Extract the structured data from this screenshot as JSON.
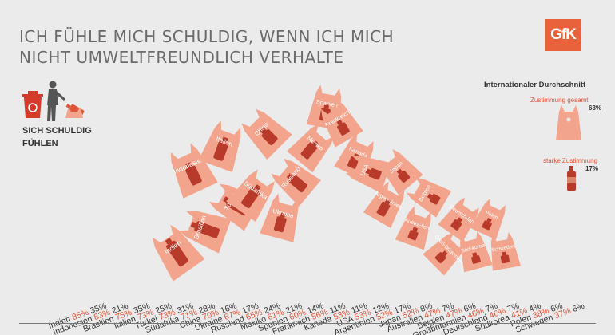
{
  "title": {
    "line1": "ICH FÜHLE MICH SCHULDIG, WENN ICH MICH",
    "line2": "NICHT UMWELTFREUNDLICH VERHALTE"
  },
  "logo": {
    "text": "GfK"
  },
  "icon_label": {
    "line1": "SICH SCHULDIG",
    "line2": "FÜHLEN"
  },
  "legend": {
    "heading": "Internationaler Durchschnitt",
    "total_label": "Zustimmung gesamt",
    "total_value": "63%",
    "strong_label": "starke Zustimmung",
    "strong_value": "17%"
  },
  "colors": {
    "total": "#e0543a",
    "strong": "#333333",
    "bag": "#f2a48c",
    "bottle": "#b73a2a",
    "accent": "#e8623c",
    "text": "#333333"
  },
  "icons": [
    "recycling-bin-icon",
    "person-icon",
    "bottle-icon",
    "bag-icon"
  ],
  "chart_data": {
    "type": "bar",
    "categories": [
      "Indien",
      "Indonesien",
      "Brasilien",
      "Italien",
      "Türkei",
      "Südafrika",
      "China",
      "Ukraine",
      "Russland",
      "Mexiko",
      "Spanien",
      "Frankreich",
      "Kanada",
      "USA",
      "Argentinien",
      "Japan",
      "Australien",
      "Belgien",
      "Großbritannien",
      "Deutschland",
      "Südkorea",
      "Polen",
      "Schweden"
    ],
    "bag_labels": [
      "Indien",
      "Indonesien",
      "Brasilien",
      "Italien",
      "Türkei",
      "Südafrika",
      "China",
      "Ukraine",
      "Russland",
      "Mexiko",
      "Spanien",
      "Frankreich",
      "Kanada",
      "USA",
      "Argen-tinien",
      "Japan",
      "Austra-lien",
      "Belgien",
      "Groß-britannien",
      "Deutsch-land",
      "Süd-korea",
      "Polen",
      "Schweden"
    ],
    "series": [
      {
        "name": "Zustimmung gesamt",
        "values": [
          85,
          83,
          75,
          73,
          73,
          71,
          70,
          67,
          65,
          61,
          60,
          56,
          53,
          53,
          52,
          52,
          47,
          47,
          46,
          46,
          41,
          38,
          37
        ]
      },
      {
        "name": "starke Zustimmung",
        "values": [
          35,
          21,
          35,
          25,
          31,
          28,
          16,
          17,
          24,
          21,
          14,
          11,
          11,
          12,
          17,
          8,
          7,
          6,
          7,
          7,
          4,
          6,
          6
        ]
      }
    ],
    "averages": {
      "total": 63,
      "strong": 17
    }
  }
}
